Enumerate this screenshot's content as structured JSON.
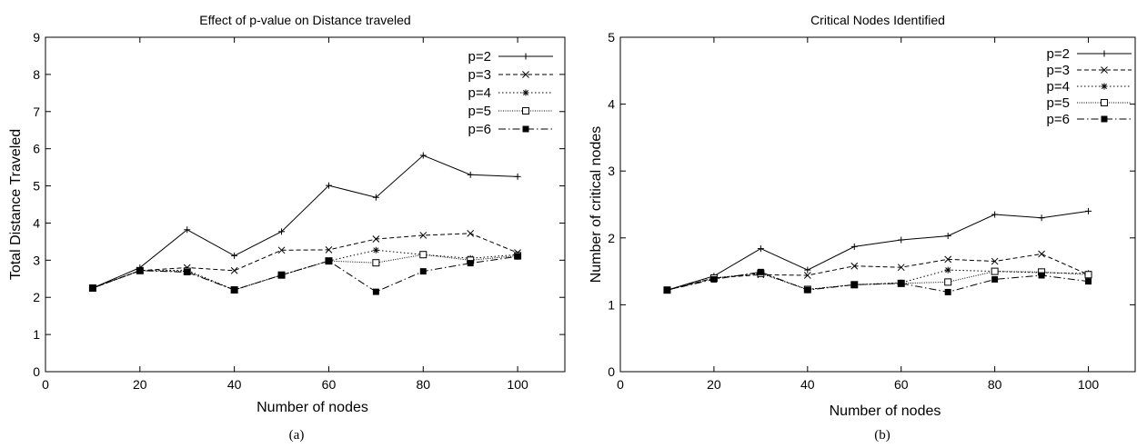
{
  "chart_data": [
    {
      "id": "a",
      "type": "line",
      "title": "Effect of p-value on Distance traveled",
      "xlabel": "Number of nodes",
      "ylabel": "Total Distance Traveled",
      "caption": "(a)",
      "xlim": [
        0,
        110
      ],
      "ylim": [
        0,
        9
      ],
      "xticks": [
        0,
        20,
        40,
        60,
        80,
        100
      ],
      "yticks": [
        0,
        1,
        2,
        3,
        4,
        5,
        6,
        7,
        8,
        9
      ],
      "legend_position": "top-right",
      "grid": false,
      "x": [
        10,
        20,
        30,
        40,
        50,
        60,
        70,
        80,
        90,
        100
      ],
      "series": [
        {
          "name": "p=2",
          "marker": "plus",
          "dash": "",
          "values": [
            2.25,
            2.8,
            3.82,
            3.12,
            3.77,
            5.01,
            4.69,
            5.82,
            5.3,
            5.25
          ]
        },
        {
          "name": "p=3",
          "marker": "cross",
          "dash": "5,3",
          "values": [
            2.25,
            2.72,
            2.8,
            2.72,
            3.27,
            3.28,
            3.57,
            3.67,
            3.72,
            3.2
          ]
        },
        {
          "name": "p=4",
          "marker": "star",
          "dash": "1.5,2.5",
          "values": [
            2.25,
            2.72,
            2.73,
            2.2,
            2.6,
            2.98,
            3.27,
            3.15,
            3.05,
            3.15
          ]
        },
        {
          "name": "p=5",
          "marker": "square",
          "dash": "1,1.5",
          "values": [
            2.25,
            2.72,
            2.7,
            2.2,
            2.6,
            2.98,
            2.93,
            3.15,
            3.0,
            3.12
          ]
        },
        {
          "name": "p=6",
          "marker": "filledsquare",
          "dash": "8,3,1.5,3",
          "values": [
            2.25,
            2.72,
            2.68,
            2.2,
            2.6,
            2.98,
            2.15,
            2.7,
            2.92,
            3.1
          ]
        }
      ]
    },
    {
      "id": "b",
      "type": "line",
      "title": "Critical Nodes Identified",
      "xlabel": "Number of nodes",
      "ylabel": "Number of critical nodes",
      "caption": "(b)",
      "xlim": [
        0,
        110
      ],
      "ylim": [
        0,
        5
      ],
      "xticks": [
        0,
        20,
        40,
        60,
        80,
        100
      ],
      "yticks": [
        0,
        1,
        2,
        3,
        4,
        5
      ],
      "legend_position": "top-right",
      "grid": false,
      "x": [
        10,
        20,
        30,
        40,
        50,
        60,
        70,
        80,
        90,
        100
      ],
      "series": [
        {
          "name": "p=2",
          "marker": "plus",
          "dash": "",
          "values": [
            1.22,
            1.43,
            1.84,
            1.52,
            1.87,
            1.97,
            2.03,
            2.35,
            2.3,
            2.4
          ]
        },
        {
          "name": "p=3",
          "marker": "cross",
          "dash": "5,3",
          "values": [
            1.22,
            1.4,
            1.45,
            1.44,
            1.58,
            1.56,
            1.68,
            1.65,
            1.76,
            1.45
          ]
        },
        {
          "name": "p=4",
          "marker": "star",
          "dash": "1.5,2.5",
          "values": [
            1.22,
            1.4,
            1.47,
            1.23,
            1.3,
            1.33,
            1.52,
            1.5,
            1.48,
            1.47
          ]
        },
        {
          "name": "p=5",
          "marker": "square",
          "dash": "1,1.5",
          "values": [
            1.22,
            1.4,
            1.47,
            1.23,
            1.3,
            1.32,
            1.34,
            1.5,
            1.49,
            1.45
          ]
        },
        {
          "name": "p=6",
          "marker": "filledsquare",
          "dash": "8,3,1.5,3",
          "values": [
            1.22,
            1.38,
            1.49,
            1.22,
            1.3,
            1.32,
            1.19,
            1.38,
            1.44,
            1.35
          ]
        }
      ]
    }
  ]
}
